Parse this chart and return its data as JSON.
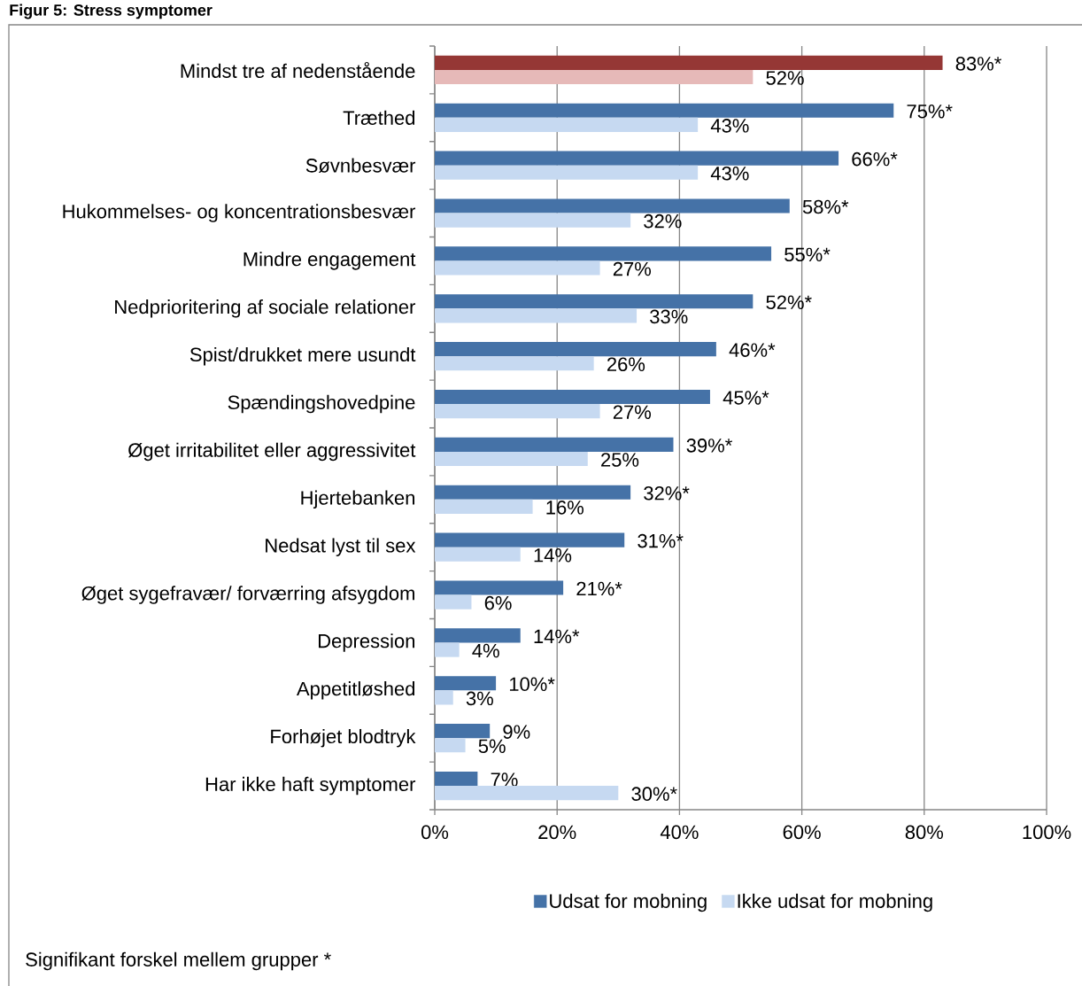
{
  "chart_data": {
    "type": "bar",
    "orientation": "horizontal",
    "title": "Figur 5: Stress symptomer",
    "categories": [
      "Mindst tre af nedenstående",
      "Træthed",
      "Søvnbesvær",
      "Hukommelses- og koncentrationsbesvær",
      "Mindre engagement",
      "Nedprioritering af sociale relationer",
      "Spist/drukket mere usundt",
      "Spændingshovedpine",
      "Øget irritabilitet eller aggressivitet",
      "Hjertebanken",
      "Nedsat lyst til sex",
      "Øget sygefravær/ forværring afsygdom",
      "Depression",
      "Appetitløshed",
      "Forhøjet blodtryk",
      "Har ikke haft symptomer"
    ],
    "series": [
      {
        "name": "Udsat for mobning",
        "color": "#4572a7",
        "colors": [
          "#953735",
          "#4572a7",
          "#4572a7",
          "#4572a7",
          "#4572a7",
          "#4572a7",
          "#4572a7",
          "#4572a7",
          "#4572a7",
          "#4572a7",
          "#4572a7",
          "#4572a7",
          "#4572a7",
          "#4572a7",
          "#4572a7",
          "#4572a7"
        ],
        "values": [
          83,
          75,
          66,
          58,
          55,
          52,
          46,
          45,
          39,
          32,
          31,
          21,
          14,
          10,
          9,
          7
        ],
        "value_labels": [
          "83%*",
          "75%*",
          "66%*",
          "58%*",
          "55%*",
          "52%*",
          "46%*",
          "45%*",
          "39%*",
          "32%*",
          "31%*",
          "21%*",
          "14%*",
          "10%*",
          "9%",
          "7%"
        ]
      },
      {
        "name": "Ikke udsat for mobning",
        "color": "#c6d9f1",
        "colors": [
          "#e6b9b8",
          "#c6d9f1",
          "#c6d9f1",
          "#c6d9f1",
          "#c6d9f1",
          "#c6d9f1",
          "#c6d9f1",
          "#c6d9f1",
          "#c6d9f1",
          "#c6d9f1",
          "#c6d9f1",
          "#c6d9f1",
          "#c6d9f1",
          "#c6d9f1",
          "#c6d9f1",
          "#c6d9f1"
        ],
        "values": [
          52,
          43,
          43,
          32,
          27,
          33,
          26,
          27,
          25,
          16,
          14,
          6,
          4,
          3,
          5,
          30
        ],
        "value_labels": [
          "52%",
          "43%",
          "43%",
          "32%",
          "27%",
          "33%",
          "26%",
          "27%",
          "25%",
          "16%",
          "14%",
          "6%",
          "4%",
          "3%",
          "5%",
          "30%*"
        ]
      }
    ],
    "xlim": [
      0,
      100
    ],
    "xticks": [
      {
        "value": 0,
        "label": "0%"
      },
      {
        "value": 20,
        "label": "20%"
      },
      {
        "value": 40,
        "label": "40%"
      },
      {
        "value": 60,
        "label": "60%"
      },
      {
        "value": 80,
        "label": "80%"
      },
      {
        "value": 100,
        "label": "100%"
      }
    ],
    "grid": "x",
    "legend": "bottom",
    "annotations": [
      "Signifikant forskel mellem grupper *"
    ]
  }
}
